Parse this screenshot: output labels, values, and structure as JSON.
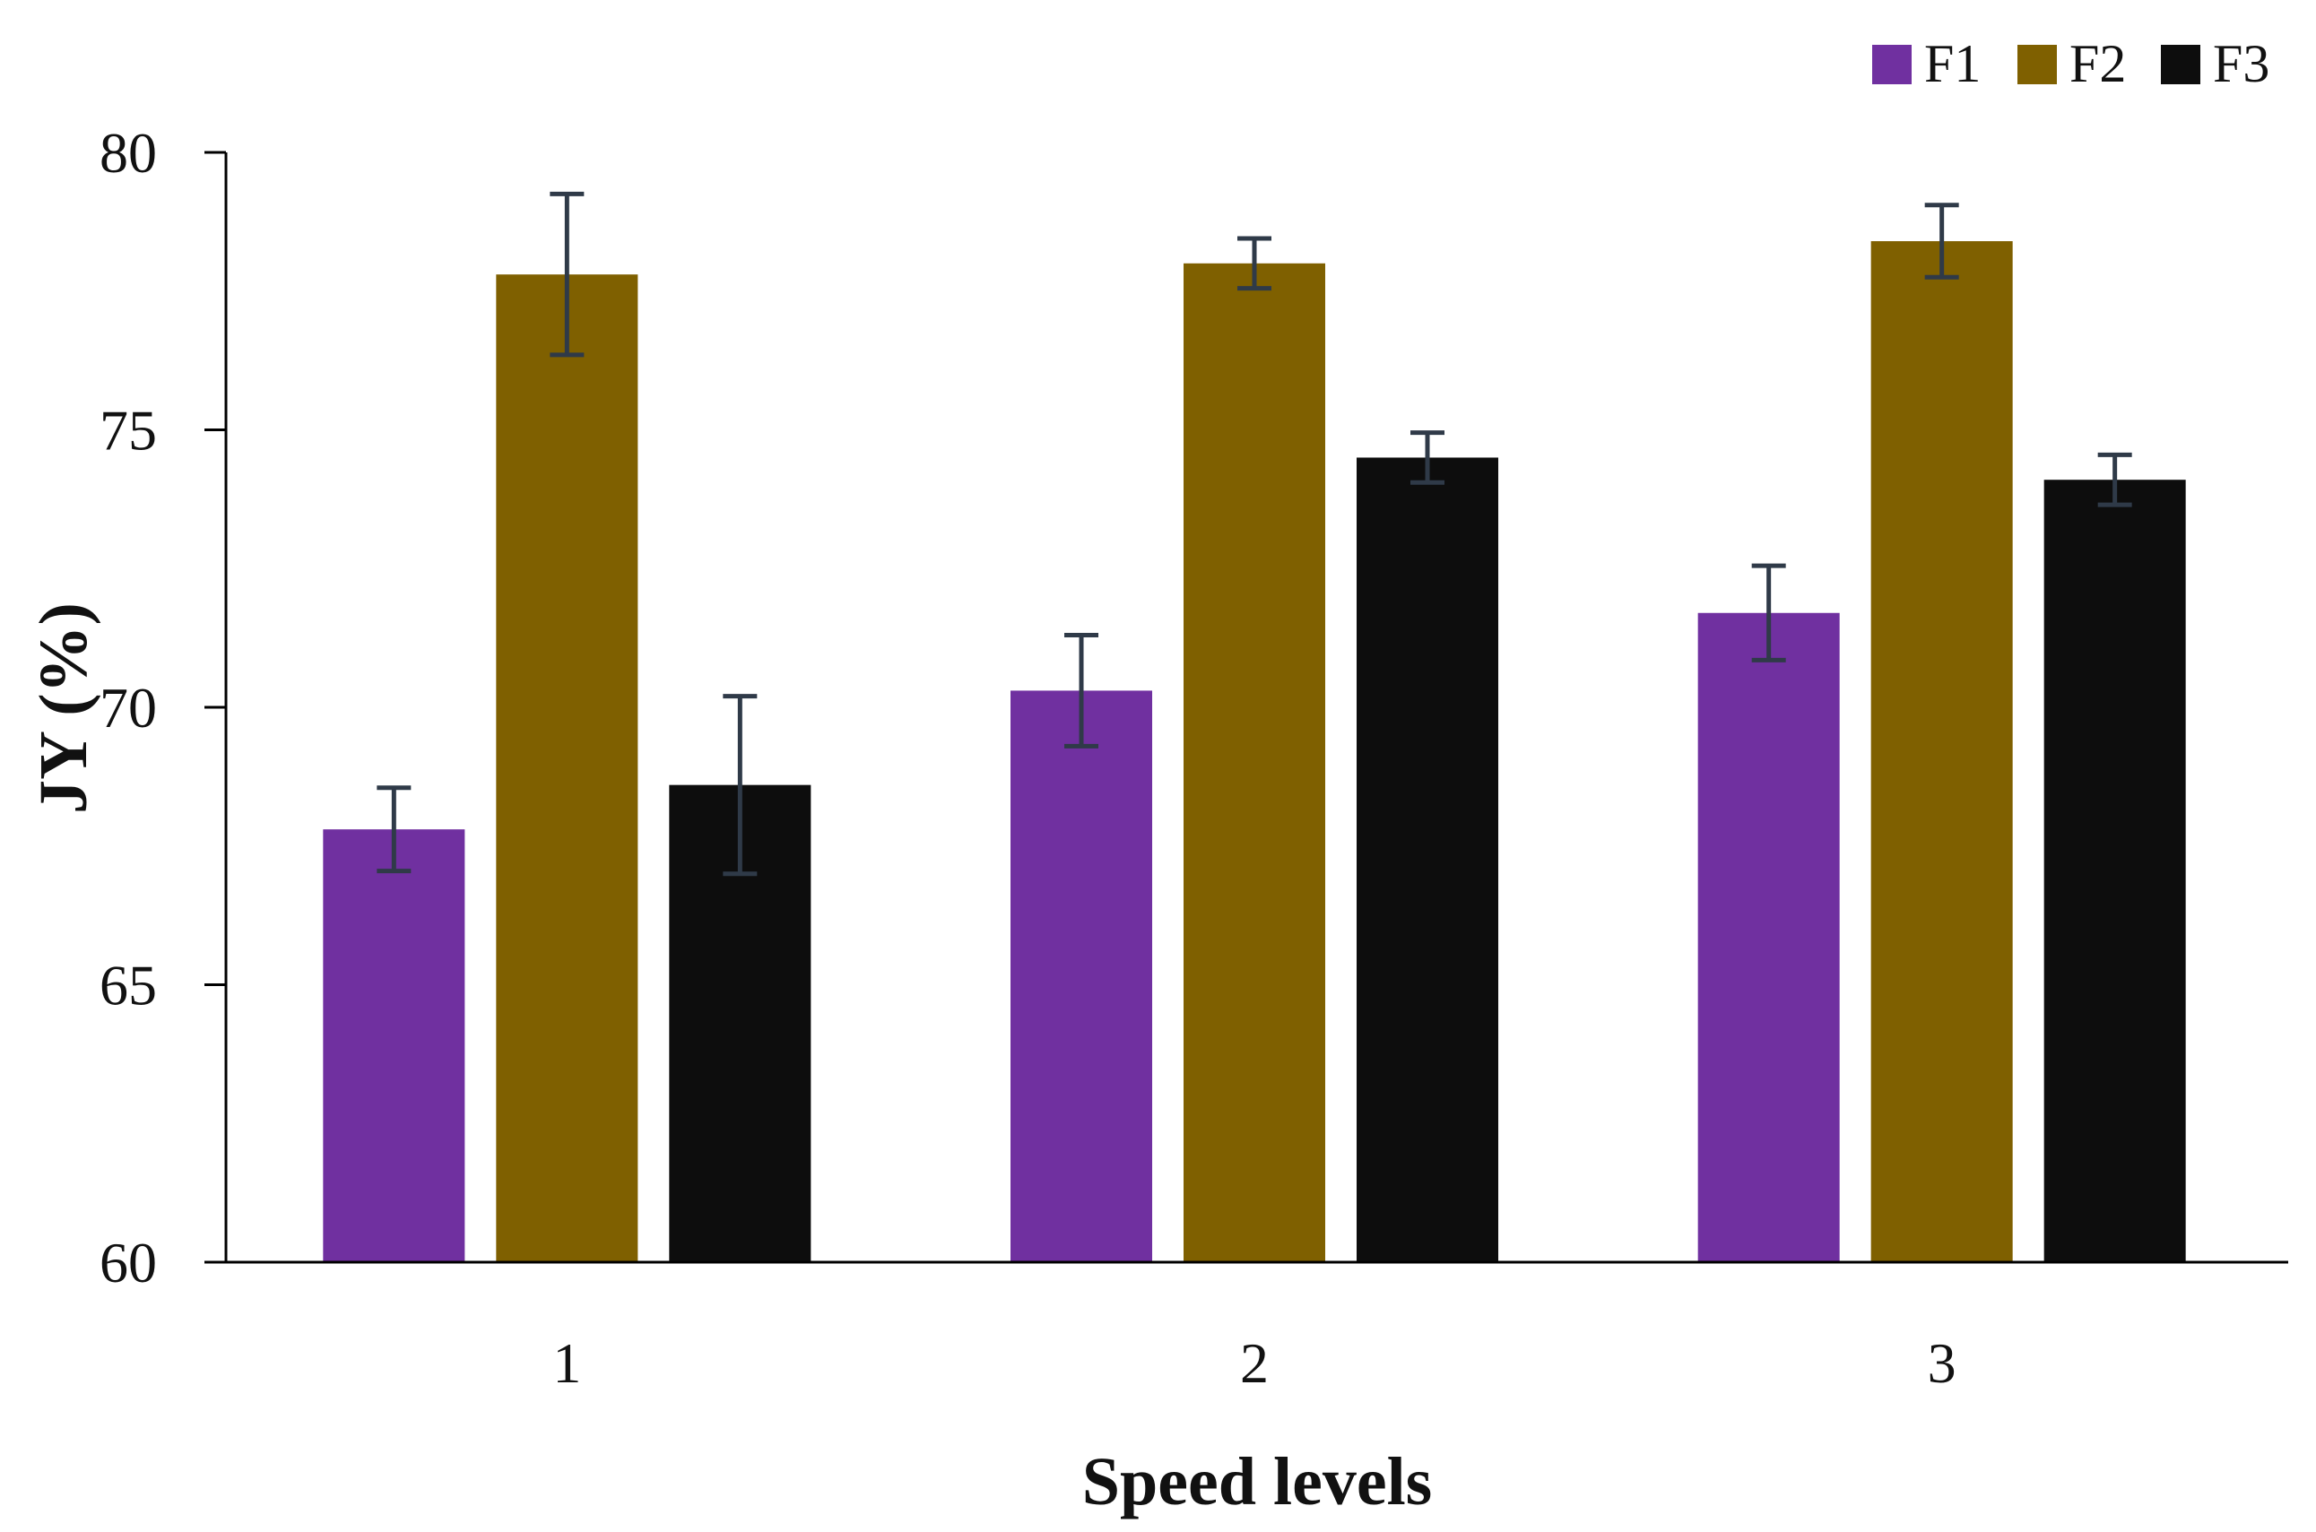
{
  "chart_data": {
    "type": "bar",
    "title": "",
    "xlabel": "Speed levels",
    "ylabel": "JY (%)",
    "categories": [
      "1",
      "2",
      "3"
    ],
    "ylim": [
      60,
      80
    ],
    "yticks": [
      {
        "value": 60,
        "label": "60"
      },
      {
        "value": 65,
        "label": "65"
      },
      {
        "value": 70,
        "label": "70"
      },
      {
        "value": 75,
        "label": "75"
      },
      {
        "value": 80,
        "label": "80"
      }
    ],
    "grid": false,
    "legend_position": "top-right",
    "error_bar_color": "#2f3a48",
    "series": [
      {
        "name": "F1",
        "color": "#7030a0",
        "values": [
          67.8,
          70.3,
          71.7
        ],
        "errors": [
          0.75,
          1.0,
          0.85
        ]
      },
      {
        "name": "F2",
        "color": "#7f6000",
        "values": [
          77.8,
          78.0,
          78.4
        ],
        "errors": [
          1.45,
          0.45,
          0.65
        ]
      },
      {
        "name": "F3",
        "color": "#0d0d0d",
        "values": [
          68.6,
          74.5,
          74.1
        ],
        "errors": [
          1.6,
          0.45,
          0.45
        ]
      }
    ]
  }
}
